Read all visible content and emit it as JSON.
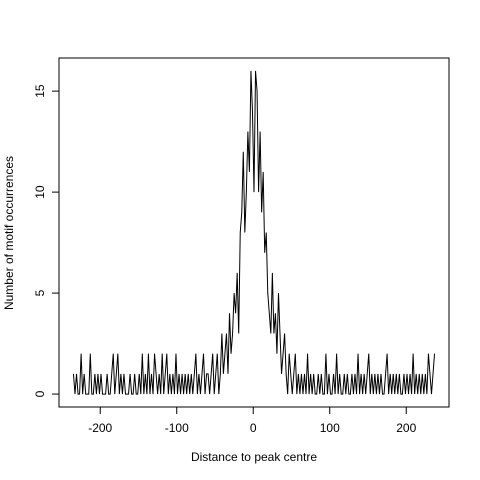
{
  "chart_data": {
    "type": "line",
    "x_label": "Distance to peak centre",
    "y_label": "Number of motif occurrences",
    "color": "#000000",
    "x": [
      -235,
      -233,
      -231,
      -229,
      -227,
      -225,
      -223,
      -221,
      -219,
      -217,
      -215,
      -213,
      -211,
      -209,
      -207,
      -205,
      -203,
      -201,
      -199,
      -197,
      -195,
      -193,
      -191,
      -189,
      -187,
      -185,
      -183,
      -181,
      -179,
      -177,
      -175,
      -173,
      -171,
      -169,
      -167,
      -165,
      -163,
      -161,
      -159,
      -157,
      -155,
      -153,
      -151,
      -149,
      -147,
      -145,
      -143,
      -141,
      -139,
      -137,
      -135,
      -133,
      -131,
      -129,
      -127,
      -125,
      -123,
      -121,
      -119,
      -117,
      -115,
      -113,
      -111,
      -109,
      -107,
      -105,
      -103,
      -101,
      -99,
      -97,
      -95,
      -93,
      -91,
      -89,
      -87,
      -85,
      -83,
      -81,
      -79,
      -77,
      -75,
      -73,
      -71,
      -69,
      -67,
      -65,
      -63,
      -61,
      -59,
      -57,
      -55,
      -53,
      -51,
      -49,
      -47,
      -45,
      -43,
      -41,
      -39,
      -37,
      -35,
      -33,
      -31,
      -29,
      -27,
      -25,
      -23,
      -21,
      -19,
      -17,
      -15,
      -13,
      -11,
      -9,
      -7,
      -5,
      -3,
      -1,
      1,
      3,
      5,
      7,
      9,
      11,
      13,
      15,
      17,
      19,
      21,
      23,
      25,
      27,
      29,
      31,
      33,
      35,
      37,
      39,
      41,
      43,
      45,
      47,
      49,
      51,
      53,
      55,
      57,
      59,
      61,
      63,
      65,
      67,
      69,
      71,
      73,
      75,
      77,
      79,
      81,
      83,
      85,
      87,
      89,
      91,
      93,
      95,
      97,
      99,
      101,
      103,
      105,
      107,
      109,
      111,
      113,
      115,
      117,
      119,
      121,
      123,
      125,
      127,
      129,
      131,
      133,
      135,
      137,
      139,
      141,
      143,
      145,
      147,
      149,
      151,
      153,
      155,
      157,
      159,
      161,
      163,
      165,
      167,
      169,
      171,
      173,
      175,
      177,
      179,
      181,
      183,
      185,
      187,
      189,
      191,
      193,
      195,
      197,
      199,
      201,
      203,
      205,
      207,
      209,
      211,
      213,
      215,
      217,
      219,
      221,
      223,
      225,
      227,
      229,
      231,
      233,
      235,
      237
    ],
    "values": [
      1,
      0,
      1,
      0,
      0,
      2,
      0,
      1,
      0,
      0,
      0,
      2,
      0,
      0,
      1,
      0,
      1,
      0,
      1,
      0,
      0,
      0,
      1,
      0,
      0,
      1,
      2,
      0,
      1,
      2,
      0,
      1,
      0,
      1,
      0,
      0,
      0,
      1,
      0,
      0,
      1,
      0,
      0,
      1,
      0,
      2,
      0,
      1,
      0,
      2,
      0,
      1,
      0,
      2,
      1,
      0,
      1,
      0,
      2,
      0,
      1,
      2,
      0,
      1,
      0,
      1,
      0,
      2,
      0,
      1,
      0,
      1,
      0,
      1,
      0,
      1,
      0,
      1,
      0,
      1,
      2,
      0,
      1,
      0,
      1,
      2,
      0,
      1,
      1,
      0,
      1,
      2,
      0,
      1,
      2,
      0,
      1,
      3,
      1,
      2,
      3,
      1,
      4,
      2,
      3,
      5,
      4,
      6,
      3,
      8,
      9,
      12,
      8,
      10,
      13,
      11,
      16,
      14,
      10,
      16,
      15,
      10,
      13,
      9,
      11,
      7,
      8,
      5,
      4,
      3,
      6,
      3,
      4,
      2,
      5,
      3,
      1,
      2,
      3,
      1,
      0,
      2,
      1,
      0,
      1,
      2,
      0,
      1,
      0,
      1,
      0,
      1,
      0,
      2,
      0,
      1,
      0,
      1,
      0,
      0,
      1,
      0,
      1,
      0,
      0,
      2,
      0,
      1,
      0,
      0,
      1,
      0,
      2,
      0,
      1,
      0,
      0,
      1,
      0,
      1,
      0,
      0,
      1,
      0,
      1,
      0,
      2,
      0,
      1,
      0,
      1,
      0,
      1,
      2,
      0,
      1,
      0,
      1,
      0,
      1,
      0,
      1,
      0,
      0,
      1,
      2,
      0,
      1,
      0,
      1,
      0,
      1,
      0,
      1,
      0,
      0,
      1,
      0,
      1,
      0,
      1,
      0,
      2,
      0,
      1,
      0,
      1,
      0,
      1,
      0,
      1,
      0,
      2,
      1,
      0,
      1,
      2
    ],
    "xlim": [
      -253.9,
      255.9
    ],
    "ylim": [
      -0.64,
      16.64
    ],
    "xticks": [
      -200,
      -100,
      0,
      100,
      200
    ],
    "yticks": [
      0,
      5,
      10,
      15
    ]
  }
}
